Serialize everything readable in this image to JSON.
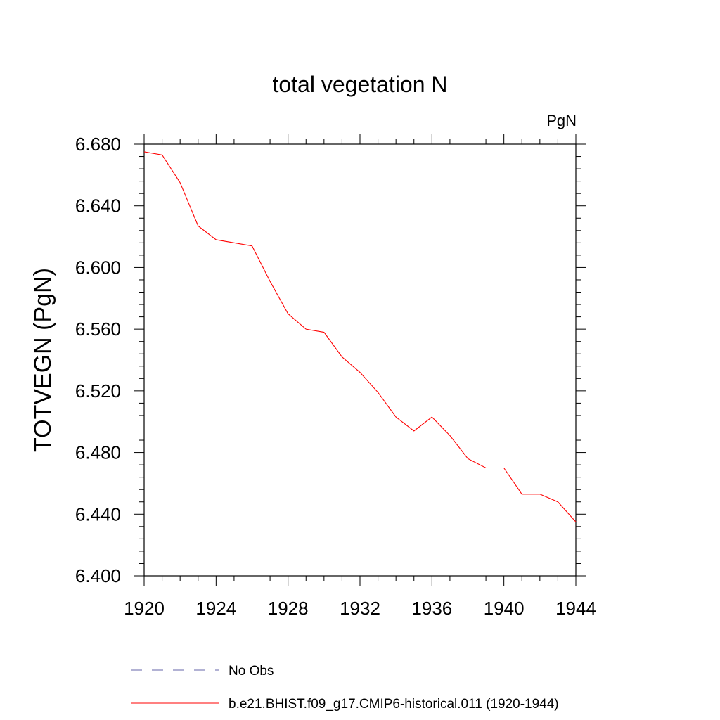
{
  "chart_data": {
    "type": "line",
    "title": "total vegetation N",
    "unit_label": "PgN",
    "ylabel": "TOTVEGN  (PgN)",
    "xlabel": "",
    "xlim": [
      1920,
      1944
    ],
    "ylim": [
      6.4,
      6.68
    ],
    "x_ticks": [
      "1920",
      "1924",
      "1928",
      "1932",
      "1936",
      "1940",
      "1944"
    ],
    "y_ticks": [
      "6.400",
      "6.440",
      "6.480",
      "6.520",
      "6.560",
      "6.600",
      "6.640",
      "6.680"
    ],
    "grid": false,
    "legend_position": "bottom",
    "series": [
      {
        "name": "No Obs",
        "color": "#6666aa",
        "dash": "dashed",
        "x": [],
        "values": []
      },
      {
        "name": "b.e21.BHIST.f09_g17.CMIP6-historical.011 (1920-1944)",
        "color": "#ff0000",
        "dash": "solid",
        "x": [
          1920,
          1921,
          1922,
          1923,
          1924,
          1925,
          1926,
          1927,
          1928,
          1929,
          1930,
          1931,
          1932,
          1933,
          1934,
          1935,
          1936,
          1937,
          1938,
          1939,
          1940,
          1941,
          1942,
          1943,
          1944
        ],
        "values": [
          6.675,
          6.673,
          6.655,
          6.627,
          6.618,
          6.616,
          6.614,
          6.591,
          6.57,
          6.56,
          6.558,
          6.542,
          6.532,
          6.519,
          6.503,
          6.494,
          6.503,
          6.491,
          6.476,
          6.47,
          6.47,
          6.453,
          6.453,
          6.448,
          6.435
        ]
      }
    ]
  }
}
